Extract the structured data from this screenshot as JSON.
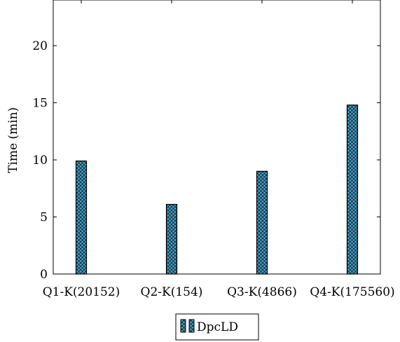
{
  "chart_data": {
    "type": "bar",
    "categories": [
      "Q1-K(20152)",
      "Q2-K(154)",
      "Q3-K(4866)",
      "Q4-K(175560)"
    ],
    "series": [
      {
        "name": "DpcLD",
        "values": [
          9.9,
          6.1,
          9.0,
          14.8
        ]
      }
    ],
    "xlabel": "",
    "ylabel": "Time (min)",
    "ylim": [
      0,
      24
    ],
    "yticks": [
      0,
      5,
      10,
      15,
      20
    ],
    "grid": false,
    "legend_position": "bottom-center",
    "colors": {
      "bar_fill": "#3ea8d8",
      "bar_hatch": "#1a1a1a",
      "axis": "#000000"
    }
  }
}
